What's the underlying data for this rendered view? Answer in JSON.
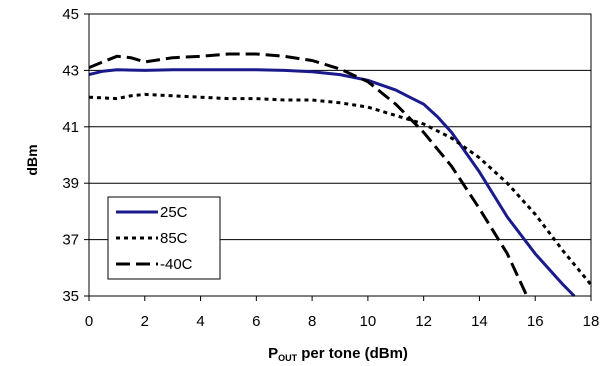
{
  "chart_data": {
    "type": "line",
    "title": "",
    "xlabel": {
      "main": "P",
      "sub": "OUT",
      "rest": " per tone (dBm)"
    },
    "ylabel": "dBm",
    "xlim": [
      0,
      18
    ],
    "ylim": [
      35,
      45
    ],
    "x_ticks": [
      "0",
      "2",
      "4",
      "6",
      "8",
      "10",
      "12",
      "14",
      "16",
      "18"
    ],
    "y_ticks": [
      "35",
      "37",
      "39",
      "41",
      "43",
      "45"
    ],
    "grid": "horizontal",
    "legend_position": "bottom-left",
    "series": [
      {
        "name": "25C",
        "color": "#1a1a8c",
        "style": "solid",
        "points": [
          [
            0,
            42.85
          ],
          [
            0.5,
            42.97
          ],
          [
            1,
            43.02
          ],
          [
            2,
            43.0
          ],
          [
            3,
            43.02
          ],
          [
            4,
            43.02
          ],
          [
            5,
            43.02
          ],
          [
            6,
            43.02
          ],
          [
            7,
            43.0
          ],
          [
            8,
            42.95
          ],
          [
            9,
            42.85
          ],
          [
            10,
            42.65
          ],
          [
            11,
            42.3
          ],
          [
            11.5,
            42.05
          ],
          [
            12,
            41.8
          ],
          [
            12.5,
            41.35
          ],
          [
            13,
            40.8
          ],
          [
            14,
            39.4
          ],
          [
            15,
            37.8
          ],
          [
            16,
            36.5
          ],
          [
            17,
            35.4
          ],
          [
            17.4,
            35.0
          ]
        ]
      },
      {
        "name": "85C",
        "color": "#000000",
        "style": "dotted",
        "points": [
          [
            0,
            42.05
          ],
          [
            1,
            42.0
          ],
          [
            1.5,
            42.1
          ],
          [
            2,
            42.15
          ],
          [
            3,
            42.1
          ],
          [
            4,
            42.05
          ],
          [
            5,
            42.0
          ],
          [
            6,
            42.0
          ],
          [
            7,
            41.95
          ],
          [
            8,
            41.95
          ],
          [
            9,
            41.85
          ],
          [
            10,
            41.7
          ],
          [
            11,
            41.4
          ],
          [
            12,
            41.1
          ],
          [
            13,
            40.6
          ],
          [
            14,
            39.9
          ],
          [
            15,
            39.0
          ],
          [
            16,
            37.9
          ],
          [
            17,
            36.6
          ],
          [
            18,
            35.4
          ]
        ]
      },
      {
        "name": "-40C",
        "color": "#000000",
        "style": "dashed",
        "points": [
          [
            0,
            43.1
          ],
          [
            0.5,
            43.3
          ],
          [
            1,
            43.5
          ],
          [
            1.5,
            43.45
          ],
          [
            2,
            43.3
          ],
          [
            3,
            43.45
          ],
          [
            4,
            43.5
          ],
          [
            5,
            43.58
          ],
          [
            6,
            43.58
          ],
          [
            7,
            43.5
          ],
          [
            8,
            43.35
          ],
          [
            9,
            43.05
          ],
          [
            10,
            42.6
          ],
          [
            11,
            41.8
          ],
          [
            12,
            40.8
          ],
          [
            13,
            39.6
          ],
          [
            14,
            38.1
          ],
          [
            15,
            36.5
          ],
          [
            15.7,
            35.0
          ]
        ]
      }
    ]
  }
}
